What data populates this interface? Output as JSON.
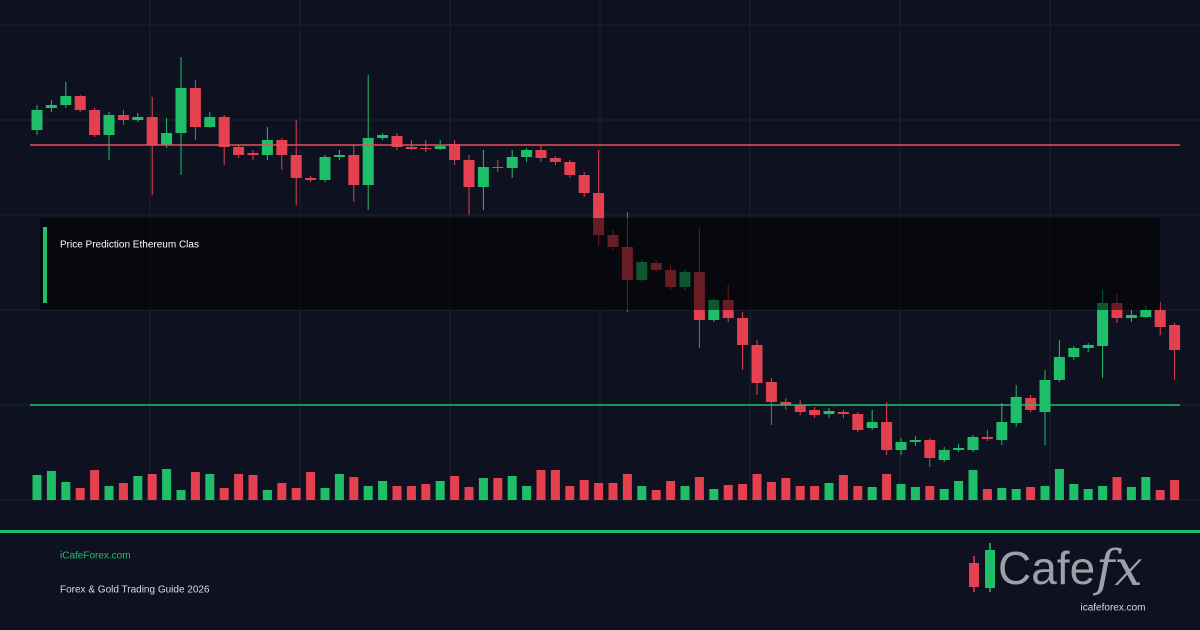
{
  "chart_data": {
    "type": "candlestick",
    "title": "Price Prediction Ethereum Clas",
    "ylim": [
      0,
      480
    ],
    "volume_lim": [
      0,
      100
    ],
    "grid": true,
    "up_color": "#1fbf6a",
    "down_color": "#e5404f",
    "open": [
      370,
      392,
      395,
      404,
      390,
      365,
      385,
      380,
      383,
      355,
      367,
      412,
      373,
      383,
      353,
      347,
      345,
      360,
      345,
      322,
      320,
      343,
      345,
      315,
      362,
      364,
      353,
      352,
      351,
      356,
      340,
      313,
      333,
      332,
      343,
      350,
      342,
      338,
      325,
      307,
      265,
      253,
      220,
      237,
      230,
      213,
      228,
      180,
      200,
      182,
      155,
      118,
      98,
      95,
      90,
      86,
      88,
      86,
      72,
      78,
      50,
      58,
      60,
      40,
      50,
      50,
      63,
      60,
      77,
      102,
      88,
      120,
      143,
      152,
      154,
      197,
      182,
      183,
      190,
      175
    ],
    "high": [
      395,
      400,
      418,
      405,
      392,
      388,
      390,
      387,
      403,
      382,
      443,
      420,
      388,
      385,
      355,
      350,
      373,
      362,
      380,
      324,
      345,
      350,
      355,
      425,
      367,
      367,
      360,
      360,
      360,
      360,
      345,
      350,
      340,
      350,
      352,
      355,
      344,
      340,
      328,
      350,
      270,
      288,
      240,
      240,
      235,
      230,
      272,
      202,
      215,
      188,
      160,
      122,
      102,
      100,
      93,
      92,
      90,
      88,
      90,
      98,
      62,
      64,
      62,
      53,
      56,
      65,
      70,
      97,
      115,
      105,
      130,
      160,
      154,
      157,
      210,
      206,
      190,
      195,
      198,
      177
    ],
    "low": [
      365,
      388,
      392,
      388,
      363,
      340,
      375,
      378,
      305,
      352,
      325,
      360,
      372,
      335,
      342,
      340,
      340,
      330,
      295,
      318,
      318,
      340,
      298,
      290,
      360,
      350,
      350,
      348,
      350,
      335,
      285,
      290,
      328,
      322,
      338,
      338,
      335,
      322,
      303,
      255,
      250,
      188,
      218,
      228,
      210,
      210,
      152,
      178,
      178,
      130,
      105,
      75,
      90,
      85,
      82,
      82,
      82,
      68,
      70,
      45,
      45,
      54,
      33,
      38,
      48,
      48,
      59,
      55,
      73,
      88,
      55,
      118,
      140,
      148,
      122,
      177,
      178,
      182,
      165,
      120
    ],
    "close": [
      390,
      395,
      404,
      390,
      365,
      385,
      380,
      383,
      355,
      367,
      412,
      373,
      383,
      353,
      345,
      345,
      360,
      345,
      322,
      320,
      343,
      345,
      315,
      362,
      365,
      353,
      351,
      351,
      354,
      340,
      313,
      333,
      332,
      343,
      350,
      342,
      338,
      325,
      307,
      265,
      253,
      220,
      238,
      230,
      213,
      228,
      180,
      200,
      182,
      155,
      117,
      98,
      95,
      88,
      85,
      89,
      86,
      70,
      78,
      50,
      58,
      60,
      42,
      50,
      52,
      63,
      61,
      78,
      103,
      90,
      120,
      143,
      152,
      155,
      197,
      182,
      185,
      190,
      173,
      150
    ],
    "volume": [
      25,
      29,
      18,
      12,
      30,
      14,
      17,
      24,
      26,
      31,
      10,
      28,
      26,
      12,
      26,
      25,
      10,
      17,
      12,
      28,
      12,
      26,
      23,
      14,
      19,
      14,
      14,
      16,
      19,
      24,
      13,
      22,
      22,
      24,
      14,
      30,
      30,
      14,
      20,
      17,
      17,
      26,
      14,
      10,
      19,
      14,
      23,
      11,
      15,
      16,
      26,
      18,
      22,
      14,
      14,
      17,
      25,
      14,
      13,
      26,
      16,
      13,
      14,
      11,
      19,
      30,
      11,
      12,
      11,
      13,
      14,
      31,
      16,
      11,
      14,
      23,
      13,
      23,
      10,
      20
    ],
    "ref_lines": [
      {
        "value": 355,
        "color": "#e5505b"
      },
      {
        "value": 95,
        "color": "#1fbf6a"
      }
    ]
  },
  "footer": {
    "site": "iCafeForex.com",
    "tagline": "Forex & Gold Trading Guide 2026"
  },
  "logo": {
    "wordmark": "Cafe",
    "accent": "fx",
    "url": "icafeforex.com"
  }
}
